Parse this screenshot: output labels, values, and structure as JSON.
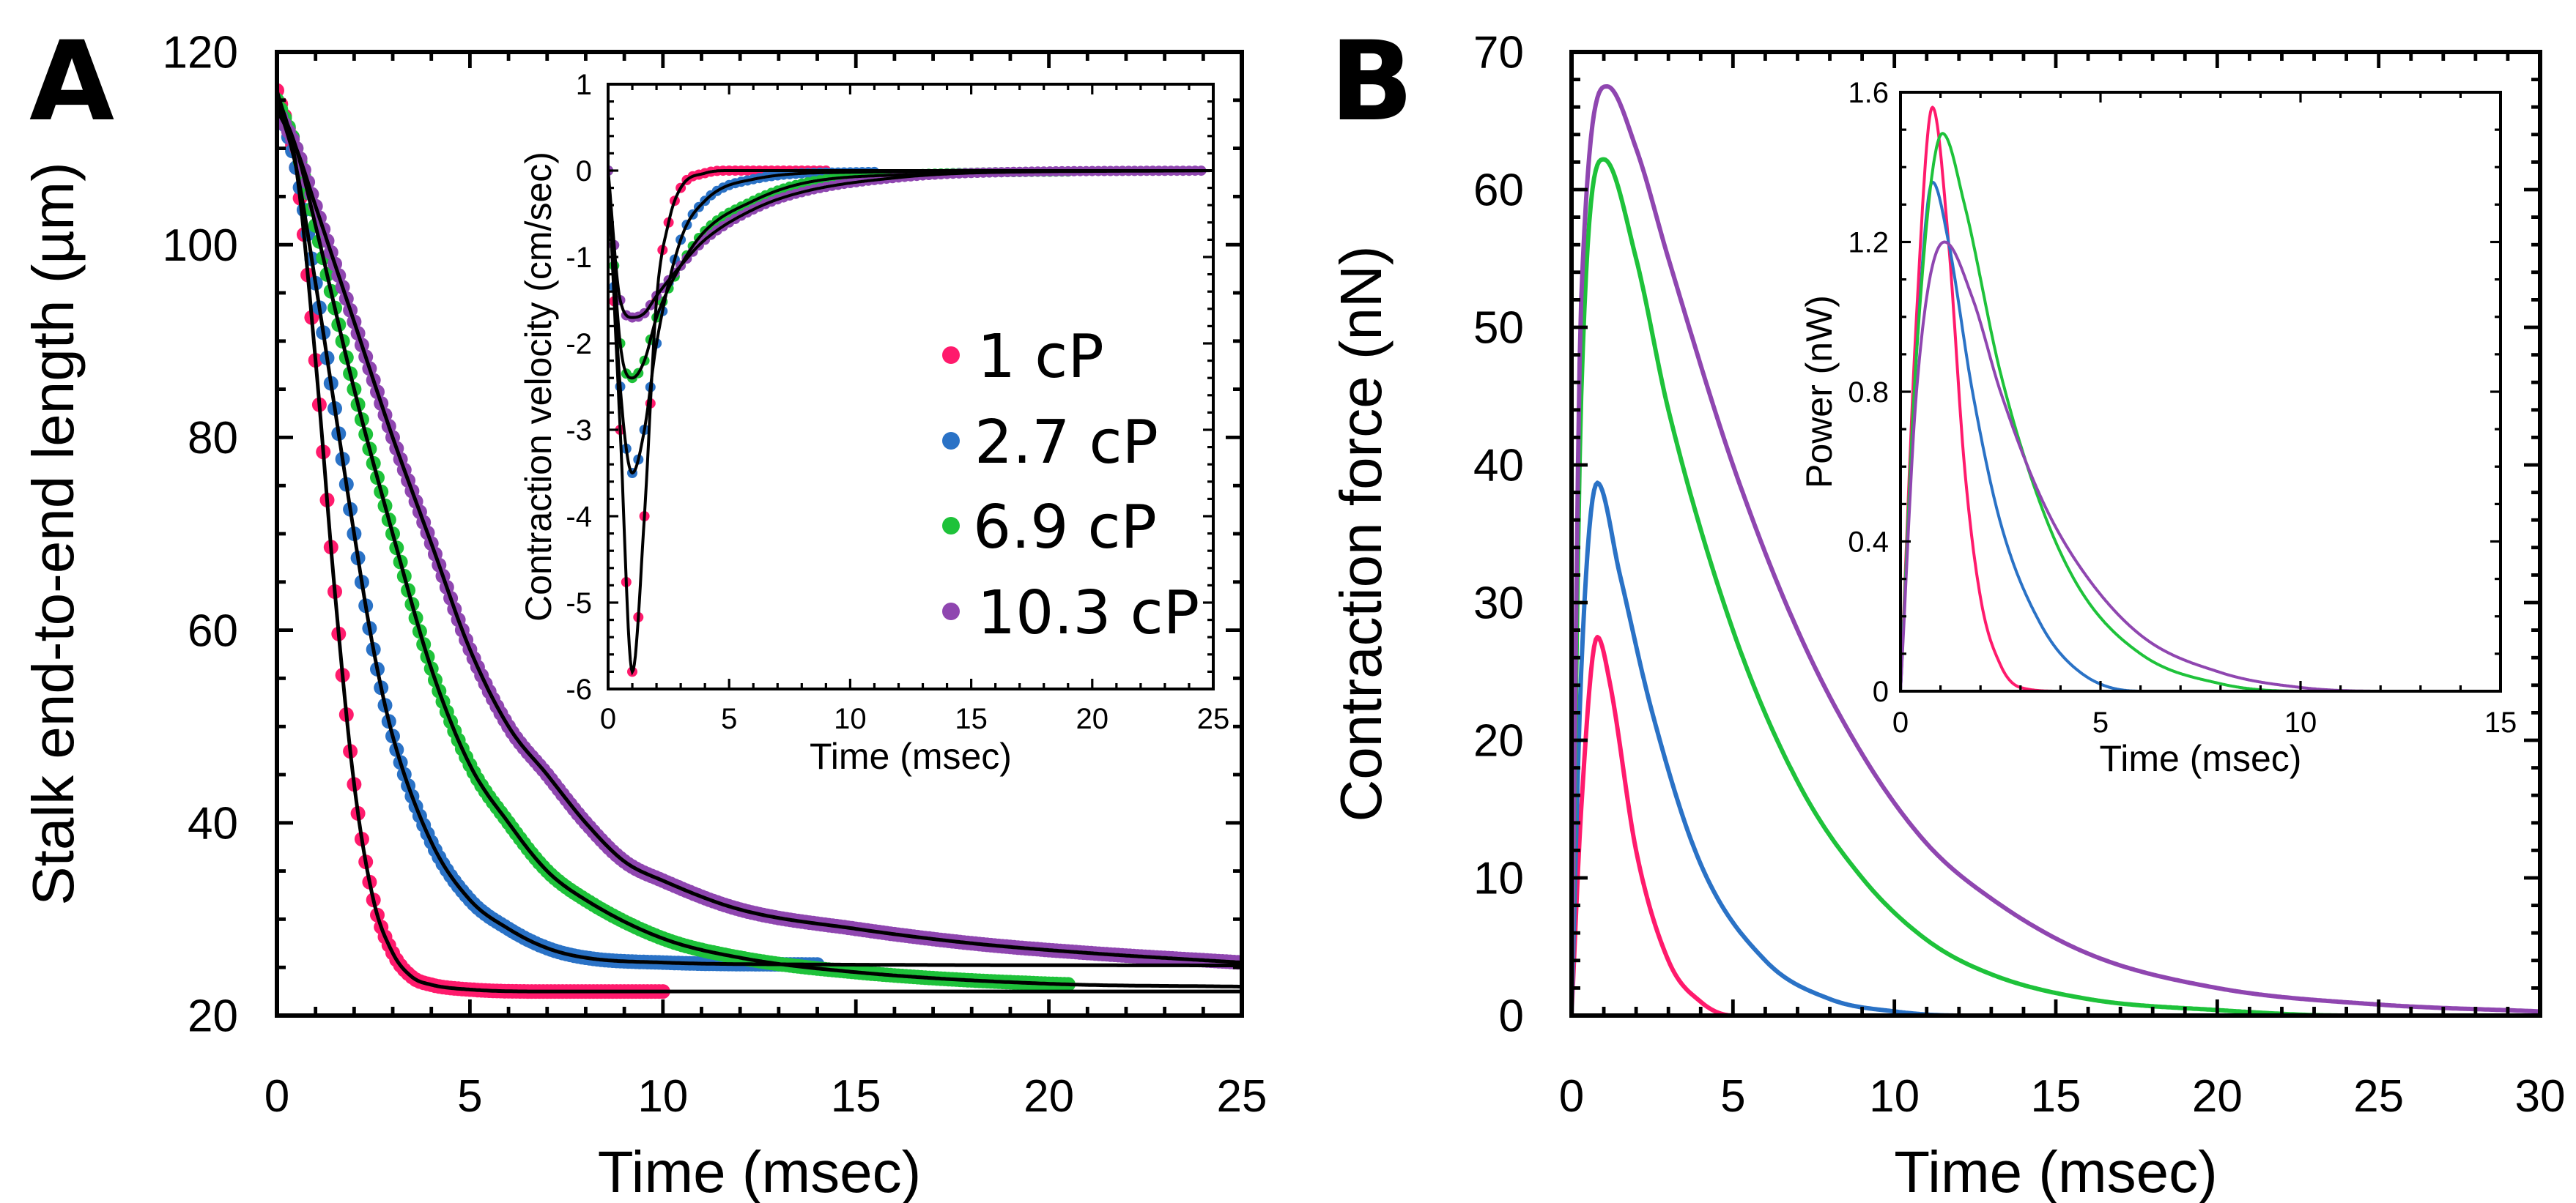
{
  "chart_data": [
    {
      "panel": "A",
      "type": "scatter",
      "xlabel": "Time (msec)",
      "ylabel": "Stalk end-to-end length (µm)",
      "xlim": [
        0,
        25
      ],
      "ylim": [
        20,
        120
      ],
      "xticks": [
        "0",
        "5",
        "10",
        "15",
        "20",
        "25"
      ],
      "yticks": [
        "20",
        "40",
        "60",
        "80",
        "100",
        "120"
      ],
      "legend": {
        "placement": "center-right"
      },
      "series": [
        {
          "name": "1 cP",
          "color": "#ff1a6c",
          "dots_until": 10,
          "fit": [
            [
              0,
              116
            ],
            [
              0.5,
              108
            ],
            [
              1,
              88
            ],
            [
              1.5,
              64
            ],
            [
              2,
              44
            ],
            [
              2.5,
              32
            ],
            [
              3,
              26.5
            ],
            [
              3.5,
              24
            ],
            [
              4,
              23.2
            ],
            [
              5,
              22.7
            ],
            [
              7,
              22.5
            ],
            [
              25,
              22.5
            ]
          ]
        },
        {
          "name": "2.7 cP",
          "color": "#2a72c6",
          "dots_until": 14,
          "fit": [
            [
              0,
              115
            ],
            [
              0.5,
              108
            ],
            [
              1,
              96
            ],
            [
              1.5,
              83
            ],
            [
              2,
              70
            ],
            [
              2.5,
              58
            ],
            [
              3,
              49
            ],
            [
              4,
              38
            ],
            [
              5,
              32
            ],
            [
              6,
              29
            ],
            [
              7,
              27
            ],
            [
              8,
              26
            ],
            [
              10,
              25.5
            ],
            [
              14,
              25.3
            ],
            [
              25,
              25.2
            ]
          ]
        },
        {
          "name": "6.9 cP",
          "color": "#1ec23a",
          "dots_until": 20.5,
          "fit": [
            [
              0,
              115
            ],
            [
              0.5,
              110
            ],
            [
              1,
              102
            ],
            [
              2,
              85
            ],
            [
              3,
              70
            ],
            [
              4,
              56
            ],
            [
              5,
              46
            ],
            [
              6,
              40
            ],
            [
              7,
              35
            ],
            [
              8,
              32
            ],
            [
              10,
              28
            ],
            [
              12,
              26
            ],
            [
              15,
              24.5
            ],
            [
              20,
              23.3
            ],
            [
              25,
              23
            ]
          ]
        },
        {
          "name": "10.3 cP",
          "color": "#8f46b0",
          "dots_until": 25,
          "fit": [
            [
              0,
              114
            ],
            [
              0.5,
              110
            ],
            [
              1,
              104
            ],
            [
              2,
              92
            ],
            [
              3,
              80
            ],
            [
              4,
              69
            ],
            [
              5,
              58
            ],
            [
              6,
              50
            ],
            [
              7,
              45
            ],
            [
              8,
              40
            ],
            [
              9,
              36
            ],
            [
              10,
              34
            ],
            [
              12,
              31
            ],
            [
              15,
              29
            ],
            [
              18,
              27.5
            ],
            [
              21,
              26.5
            ],
            [
              25,
              25.5
            ]
          ]
        }
      ]
    },
    {
      "panel": "A-inset",
      "type": "scatter",
      "xlabel": "Time (msec)",
      "ylabel": "Contraction velocity (cm/sec)",
      "xlim": [
        0,
        25
      ],
      "ylim": [
        -6,
        1
      ],
      "xticks": [
        "0",
        "5",
        "10",
        "15",
        "20",
        "25"
      ],
      "yticks": [
        "-6",
        "-5",
        "-4",
        "-3",
        "-2",
        "-1",
        "0",
        "1"
      ],
      "series": [
        {
          "name": "1 cP",
          "dots_until": 9,
          "fit": [
            [
              0,
              0
            ],
            [
              0.5,
              -3
            ],
            [
              1,
              -5.8
            ],
            [
              1.5,
              -4
            ],
            [
              2,
              -1.5
            ],
            [
              2.5,
              -0.6
            ],
            [
              3,
              -0.2
            ],
            [
              4,
              -0.03
            ],
            [
              5,
              0
            ],
            [
              25,
              0
            ]
          ]
        },
        {
          "name": "2.7 cP",
          "dots_until": 11,
          "fit": [
            [
              0,
              0
            ],
            [
              0.5,
              -2.5
            ],
            [
              1,
              -3.5
            ],
            [
              1.5,
              -3.0
            ],
            [
              2,
              -2
            ],
            [
              3,
              -0.8
            ],
            [
              4,
              -0.35
            ],
            [
              6,
              -0.1
            ],
            [
              10,
              -0.02
            ],
            [
              25,
              0
            ]
          ]
        },
        {
          "name": "6.9 cP",
          "dots_until": 19,
          "fit": [
            [
              0,
              0
            ],
            [
              0.5,
              -2
            ],
            [
              1,
              -2.4
            ],
            [
              1.5,
              -2.2
            ],
            [
              2,
              -1.7
            ],
            [
              3,
              -1.1
            ],
            [
              4,
              -0.7
            ],
            [
              6,
              -0.35
            ],
            [
              8,
              -0.15
            ],
            [
              12,
              -0.05
            ],
            [
              25,
              0
            ]
          ]
        },
        {
          "name": "10.3 cP",
          "dots_until": 24.5,
          "fit": [
            [
              0,
              0
            ],
            [
              0.5,
              -1.5
            ],
            [
              1,
              -1.7
            ],
            [
              1.5,
              -1.65
            ],
            [
              2,
              -1.45
            ],
            [
              3,
              -1.1
            ],
            [
              4,
              -0.8
            ],
            [
              6,
              -0.45
            ],
            [
              8,
              -0.25
            ],
            [
              12,
              -0.08
            ],
            [
              16,
              -0.02
            ],
            [
              25,
              0
            ]
          ]
        }
      ]
    },
    {
      "panel": "B",
      "type": "line",
      "xlabel": "Time (msec)",
      "ylabel": "Contraction force (nN)",
      "xlim": [
        0,
        30
      ],
      "ylim": [
        0,
        70
      ],
      "xticks": [
        "0",
        "5",
        "10",
        "15",
        "20",
        "25",
        "30"
      ],
      "yticks": [
        "0",
        "10",
        "20",
        "30",
        "40",
        "50",
        "60",
        "70"
      ],
      "series": [
        {
          "name": "1 cP",
          "values": [
            [
              0,
              0
            ],
            [
              0.3,
              15
            ],
            [
              0.8,
              27.5
            ],
            [
              1.2,
              24
            ],
            [
              2,
              12
            ],
            [
              3,
              4
            ],
            [
              4,
              1
            ],
            [
              5,
              0
            ],
            [
              30,
              0
            ]
          ]
        },
        {
          "name": "2.7 cP",
          "values": [
            [
              0,
              0
            ],
            [
              0.3,
              25
            ],
            [
              0.8,
              38.7
            ],
            [
              1.5,
              32
            ],
            [
              2.5,
              22
            ],
            [
              4,
              11
            ],
            [
              6,
              4
            ],
            [
              8,
              1.2
            ],
            [
              10,
              0.3
            ],
            [
              12,
              0
            ],
            [
              30,
              0
            ]
          ]
        },
        {
          "name": "6.9 cP",
          "values": [
            [
              0,
              0
            ],
            [
              0.3,
              45
            ],
            [
              1,
              62.2
            ],
            [
              2,
              55
            ],
            [
              3,
              44
            ],
            [
              5,
              28
            ],
            [
              7,
              17
            ],
            [
              9,
              10
            ],
            [
              11,
              5.5
            ],
            [
              13,
              3
            ],
            [
              16,
              1.2
            ],
            [
              20,
              0.4
            ],
            [
              24,
              0
            ],
            [
              30,
              0
            ]
          ]
        },
        {
          "name": "10.3 cP",
          "values": [
            [
              0,
              0
            ],
            [
              0.3,
              52
            ],
            [
              1.1,
              67.5
            ],
            [
              2,
              63
            ],
            [
              3,
              55
            ],
            [
              5,
              40
            ],
            [
              7,
              28
            ],
            [
              9,
              19
            ],
            [
              11,
              12.5
            ],
            [
              13,
              8.5
            ],
            [
              16,
              4.5
            ],
            [
              20,
              2
            ],
            [
              25,
              0.8
            ],
            [
              30,
              0.3
            ]
          ]
        }
      ]
    },
    {
      "panel": "B-inset",
      "type": "line",
      "xlabel": "Time (msec)",
      "ylabel": "Power (nW)",
      "xlim": [
        0,
        15
      ],
      "ylim": [
        0,
        1.6
      ],
      "xticks": [
        "0",
        "5",
        "10",
        "15"
      ],
      "yticks": [
        "0",
        "0.4",
        "0.8",
        "1.2",
        "1.6"
      ],
      "series": [
        {
          "name": "1 cP",
          "values": [
            [
              0,
              0
            ],
            [
              0.4,
              1.0
            ],
            [
              0.8,
              1.56
            ],
            [
              1.2,
              1.2
            ],
            [
              1.6,
              0.6
            ],
            [
              2,
              0.25
            ],
            [
              2.5,
              0.07
            ],
            [
              3,
              0.01
            ],
            [
              4,
              0
            ],
            [
              15,
              0
            ]
          ]
        },
        {
          "name": "2.7 cP",
          "values": [
            [
              0,
              0
            ],
            [
              0.4,
              0.9
            ],
            [
              0.8,
              1.36
            ],
            [
              1.2,
              1.2
            ],
            [
              1.8,
              0.8
            ],
            [
              2.5,
              0.45
            ],
            [
              3.5,
              0.18
            ],
            [
              4.5,
              0.05
            ],
            [
              6,
              0
            ],
            [
              15,
              0
            ]
          ]
        },
        {
          "name": "6.9 cP",
          "values": [
            [
              0,
              0
            ],
            [
              0.4,
              0.9
            ],
            [
              1.05,
              1.49
            ],
            [
              1.6,
              1.3
            ],
            [
              2.5,
              0.85
            ],
            [
              3.5,
              0.5
            ],
            [
              4.5,
              0.27
            ],
            [
              6,
              0.1
            ],
            [
              8,
              0.02
            ],
            [
              10,
              0
            ],
            [
              15,
              0
            ]
          ]
        },
        {
          "name": "10.3 cP",
          "values": [
            [
              0,
              0
            ],
            [
              0.4,
              0.8
            ],
            [
              1.1,
              1.2
            ],
            [
              1.8,
              1.05
            ],
            [
              2.5,
              0.8
            ],
            [
              3.5,
              0.52
            ],
            [
              4.5,
              0.33
            ],
            [
              6,
              0.15
            ],
            [
              8,
              0.05
            ],
            [
              10,
              0.01
            ],
            [
              12,
              0
            ],
            [
              15,
              0
            ]
          ]
        }
      ]
    }
  ],
  "panel_labels": {
    "a": "A",
    "b": "B"
  },
  "colors": {
    "1 cP": "#ff1a6c",
    "2.7 cP": "#2a72c6",
    "6.9 cP": "#1ec23a",
    "10.3 cP": "#8f46b0",
    "fit": "#000000"
  }
}
